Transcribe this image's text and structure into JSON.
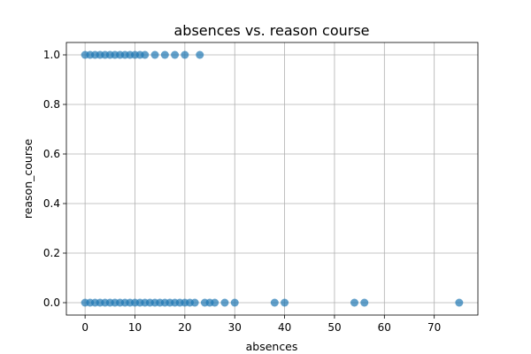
{
  "chart_data": {
    "type": "scatter",
    "title": "absences vs. reason course",
    "xlabel": "absences",
    "ylabel": "reason_course",
    "xlim": [
      -3.75,
      78.75
    ],
    "ylim": [
      -0.05,
      1.05
    ],
    "xticks": [
      0,
      10,
      20,
      30,
      40,
      50,
      60,
      70
    ],
    "yticks": [
      0.0,
      0.2,
      0.4,
      0.6,
      0.8,
      1.0
    ],
    "xtick_labels": [
      "0",
      "10",
      "20",
      "30",
      "40",
      "50",
      "60",
      "70"
    ],
    "ytick_labels": [
      "0.0",
      "0.2",
      "0.4",
      "0.6",
      "0.8",
      "1.0"
    ],
    "grid": true,
    "marker_color": "#1f77b4",
    "marker_alpha": 0.7,
    "series": [
      {
        "points": [
          [
            0,
            1
          ],
          [
            1,
            1
          ],
          [
            2,
            1
          ],
          [
            3,
            1
          ],
          [
            4,
            1
          ],
          [
            5,
            1
          ],
          [
            6,
            1
          ],
          [
            7,
            1
          ],
          [
            8,
            1
          ],
          [
            9,
            1
          ],
          [
            10,
            1
          ],
          [
            11,
            1
          ],
          [
            12,
            1
          ],
          [
            14,
            1
          ],
          [
            16,
            1
          ],
          [
            18,
            1
          ],
          [
            20,
            1
          ],
          [
            23,
            1
          ],
          [
            0,
            0
          ],
          [
            1,
            0
          ],
          [
            2,
            0
          ],
          [
            3,
            0
          ],
          [
            4,
            0
          ],
          [
            5,
            0
          ],
          [
            6,
            0
          ],
          [
            7,
            0
          ],
          [
            8,
            0
          ],
          [
            9,
            0
          ],
          [
            10,
            0
          ],
          [
            11,
            0
          ],
          [
            12,
            0
          ],
          [
            13,
            0
          ],
          [
            14,
            0
          ],
          [
            15,
            0
          ],
          [
            16,
            0
          ],
          [
            17,
            0
          ],
          [
            18,
            0
          ],
          [
            19,
            0
          ],
          [
            20,
            0
          ],
          [
            21,
            0
          ],
          [
            22,
            0
          ],
          [
            24,
            0
          ],
          [
            25,
            0
          ],
          [
            26,
            0
          ],
          [
            28,
            0
          ],
          [
            30,
            0
          ],
          [
            38,
            0
          ],
          [
            40,
            0
          ],
          [
            54,
            0
          ],
          [
            56,
            0
          ],
          [
            75,
            0
          ]
        ]
      }
    ]
  }
}
